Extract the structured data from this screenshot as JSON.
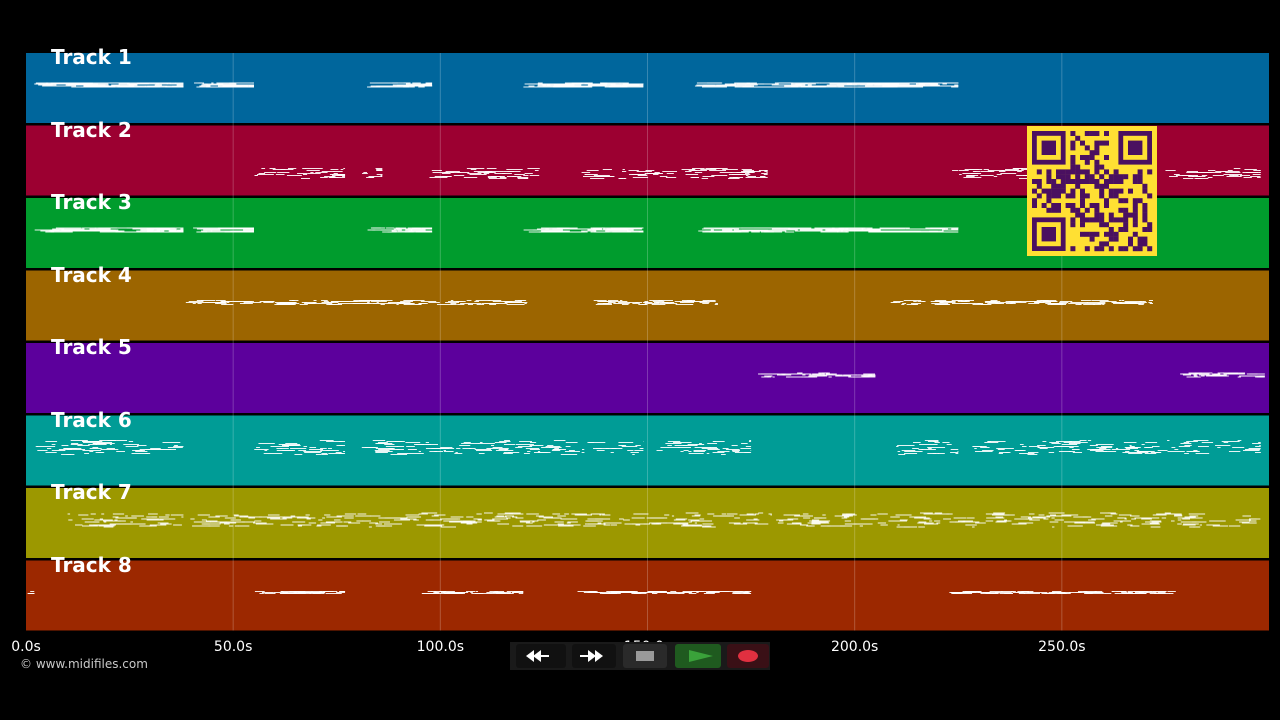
{
  "tracks": [
    {
      "label": "Track 1",
      "color": "#00669c"
    },
    {
      "label": "Track 2",
      "color": "#9c0031"
    },
    {
      "label": "Track 3",
      "color": "#009c2d"
    },
    {
      "label": "Track 4",
      "color": "#9c6500"
    },
    {
      "label": "Track 5",
      "color": "#5c009c"
    },
    {
      "label": "Track 6",
      "color": "#009c96"
    },
    {
      "label": "Track 7",
      "color": "#9c9800"
    },
    {
      "label": "Track 8",
      "color": "#9c2800"
    }
  ],
  "timeline": {
    "max_seconds": 300,
    "ticks": [
      {
        "value": 0,
        "label": "0.0s"
      },
      {
        "value": 50,
        "label": "50.0s"
      },
      {
        "value": 100,
        "label": "100.0s"
      },
      {
        "value": 150,
        "label": "150.0s"
      },
      {
        "value": 200,
        "label": "200.0s"
      },
      {
        "value": 250,
        "label": "250.0s"
      }
    ]
  },
  "copyright": "© www.midifiles.com",
  "transport": {
    "rewind_icon": "rewind-icon",
    "forward_icon": "fast-forward-icon",
    "stop_icon": "stop-icon",
    "play_icon": "play-icon",
    "record_icon": "record-icon",
    "play_color": "#3aa23a",
    "record_color": "#e03040"
  },
  "qr_code": {
    "fg_color": "#4a1060",
    "bg_color": "#ffe033"
  }
}
